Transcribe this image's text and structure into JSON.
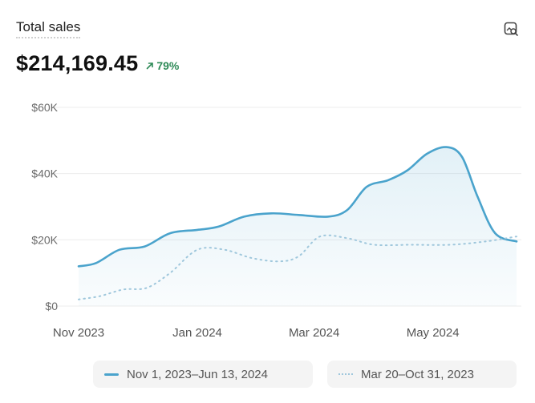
{
  "card": {
    "title": "Total sales",
    "total": "$214,169.45",
    "change": "79%",
    "accent_color": "#4aa3cc",
    "change_color": "#2e8a57",
    "explore_icon": "chart-search-icon"
  },
  "chart_data": {
    "type": "line",
    "title": "Total sales",
    "xlabel": "",
    "ylabel": "",
    "ylim": [
      0,
      60000
    ],
    "y_ticks": [
      {
        "value": 0,
        "label": "$0"
      },
      {
        "value": 20000,
        "label": "$20K"
      },
      {
        "value": 40000,
        "label": "$40K"
      },
      {
        "value": 60000,
        "label": "$60K"
      }
    ],
    "x_ticks": [
      {
        "value": "2023-11-01",
        "label": "Nov 2023"
      },
      {
        "value": "2024-01-01",
        "label": "Jan 2024"
      },
      {
        "value": "2024-03-01",
        "label": "Mar 2024"
      },
      {
        "value": "2024-05-01",
        "label": "May 2024"
      }
    ],
    "xlim": [
      "2023-11-01",
      "2024-06-13"
    ],
    "grid": true,
    "legend_placement": "bottom",
    "series": [
      {
        "name": "Nov 1, 2023–Jun 13, 2024",
        "style": "solid",
        "color": "#4aa3cc",
        "fill": true,
        "points": [
          [
            "2023-11-01",
            12000
          ],
          [
            "2023-11-10",
            13000
          ],
          [
            "2023-11-22",
            17000
          ],
          [
            "2023-12-05",
            18000
          ],
          [
            "2023-12-18",
            22000
          ],
          [
            "2024-01-01",
            23000
          ],
          [
            "2024-01-12",
            24000
          ],
          [
            "2024-01-25",
            27000
          ],
          [
            "2024-02-08",
            28000
          ],
          [
            "2024-02-22",
            27500
          ],
          [
            "2024-03-08",
            27000
          ],
          [
            "2024-03-18",
            29000
          ],
          [
            "2024-03-28",
            36000
          ],
          [
            "2024-04-08",
            38000
          ],
          [
            "2024-04-18",
            41000
          ],
          [
            "2024-04-28",
            46000
          ],
          [
            "2024-05-08",
            48000
          ],
          [
            "2024-05-16",
            45000
          ],
          [
            "2024-05-24",
            33000
          ],
          [
            "2024-06-02",
            22000
          ],
          [
            "2024-06-13",
            19500
          ]
        ]
      },
      {
        "name": "Mar 20–Oct 31, 2023",
        "style": "dotted",
        "color": "#9fc7dc",
        "fill": false,
        "points": [
          [
            "2023-11-01",
            2000
          ],
          [
            "2023-11-12",
            3000
          ],
          [
            "2023-11-24",
            5000
          ],
          [
            "2023-12-06",
            5500
          ],
          [
            "2023-12-18",
            10000
          ],
          [
            "2024-01-01",
            17000
          ],
          [
            "2024-01-15",
            17000
          ],
          [
            "2024-01-29",
            14500
          ],
          [
            "2024-02-12",
            13500
          ],
          [
            "2024-02-22",
            15000
          ],
          [
            "2024-03-04",
            21000
          ],
          [
            "2024-03-18",
            20500
          ],
          [
            "2024-04-01",
            18500
          ],
          [
            "2024-04-20",
            18500
          ],
          [
            "2024-05-10",
            18500
          ],
          [
            "2024-05-28",
            19500
          ],
          [
            "2024-06-13",
            21000
          ]
        ]
      }
    ]
  }
}
